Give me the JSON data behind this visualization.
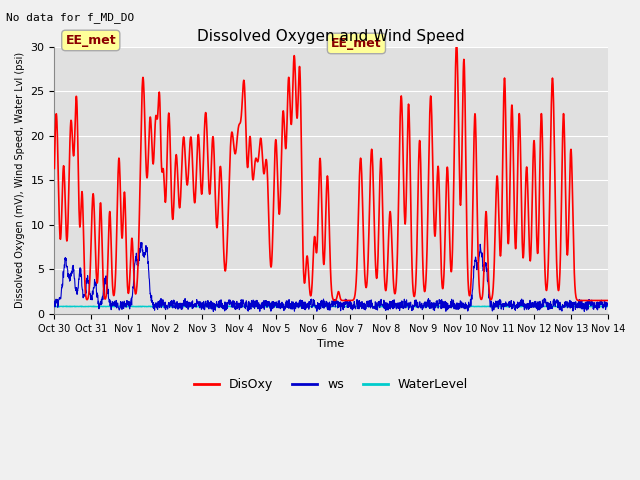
{
  "title": "Dissolved Oxygen and Wind Speed",
  "subtitle": "No data for f_MD_DO",
  "xlabel": "Time",
  "ylabel": "Dissolved Oxygen (mV), Wind Speed, Water Lvl (psi)",
  "xlim": [
    0,
    15
  ],
  "ylim": [
    0,
    30
  ],
  "yticks": [
    0,
    5,
    10,
    15,
    20,
    25,
    30
  ],
  "xtick_labels": [
    "Oct 30",
    "Oct 31",
    "Nov 1",
    "Nov 2",
    "Nov 3",
    "Nov 4",
    "Nov 5",
    "Nov 6",
    "Nov 7",
    "Nov 8",
    "Nov 9",
    "Nov 10",
    "Nov 11",
    "Nov 12",
    "Nov 13",
    "Nov 14"
  ],
  "annotation_text": "EE_met",
  "legend_labels": [
    "DisOxy",
    "ws",
    "WaterLevel"
  ],
  "disoxy_color": "#FF0000",
  "ws_color": "#0000CC",
  "wl_color": "#00CCCC",
  "fig_facecolor": "#F0F0F0",
  "plot_facecolor": "#E0E0E0",
  "grid_color": "#FFFFFF",
  "title_fontsize": 11,
  "label_fontsize": 8,
  "tick_fontsize": 8,
  "annot_fontsize": 9
}
